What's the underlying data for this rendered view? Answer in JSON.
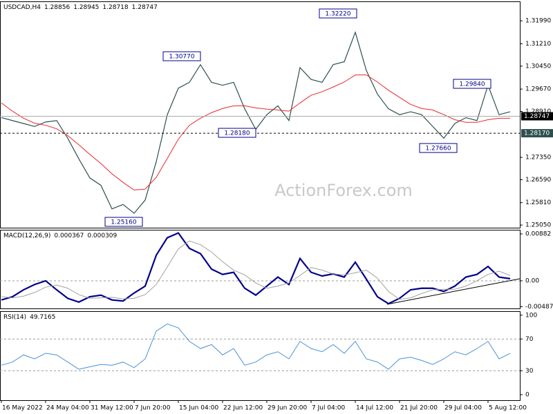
{
  "chart_data": [
    {
      "type": "line",
      "title": "USDCAD,H4",
      "ohlc": [
        1.28856,
        1.28945,
        1.28718,
        1.28747
      ],
      "watermark": "ActionForex.com",
      "categories": [
        "16 May 2022",
        null,
        null,
        null,
        "24 May 04:00",
        null,
        null,
        null,
        "31 May 12:00",
        null,
        null,
        null,
        "7 Jun 20:00",
        null,
        null,
        null,
        "15 Jun 04:00",
        null,
        null,
        null,
        "22 Jun 12:00",
        null,
        null,
        null,
        "29 Jun 20:00",
        null,
        null,
        null,
        "7 Jul 04:00",
        null,
        null,
        null,
        "14 Jul 12:00",
        null,
        null,
        null,
        "21 Jul 20:00",
        null,
        null,
        null,
        "29 Jul 04:00",
        null,
        null,
        null,
        "5 Aug 12:00",
        null,
        null
      ],
      "series": [
        {
          "color": "#2f4f4f",
          "width": 1.2,
          "values": [
            1.287,
            1.286,
            1.285,
            1.284,
            1.2855,
            1.286,
            1.28,
            1.273,
            1.2665,
            1.264,
            1.256,
            1.2575,
            1.2545,
            1.259,
            1.272,
            1.288,
            1.297,
            1.299,
            1.305,
            1.299,
            1.298,
            1.299,
            1.29,
            1.283,
            1.288,
            1.291,
            1.286,
            1.304,
            1.3,
            1.299,
            1.305,
            1.306,
            1.316,
            1.303,
            1.295,
            1.29,
            1.288,
            1.289,
            1.288,
            1.284,
            1.28,
            1.285,
            1.287,
            1.286,
            1.298,
            1.288,
            1.289
          ]
        },
        {
          "color": "#e8262c",
          "width": 1,
          "values": [
            1.292,
            1.2892,
            1.2868,
            1.2851,
            1.2844,
            1.2832,
            1.2809,
            1.2778,
            1.2745,
            1.2714,
            1.2679,
            1.265,
            1.2624,
            1.2627,
            1.2667,
            1.2731,
            1.2797,
            1.2844,
            1.2868,
            1.2887,
            1.2901,
            1.291,
            1.291,
            1.2903,
            1.2899,
            1.2896,
            1.2892,
            1.292,
            1.2946,
            1.2958,
            1.2974,
            1.2991,
            1.3015,
            1.3015,
            1.2991,
            1.2963,
            1.2939,
            1.2915,
            1.2901,
            1.2896,
            1.288,
            1.2863,
            1.2854,
            1.2854,
            1.2863,
            1.2868,
            1.2868
          ]
        }
      ],
      "ylim": [
        1.2496,
        1.3265
      ],
      "yticks": [
        {
          "value": 1.3199,
          "label": "1.31990"
        },
        {
          "value": 1.3121,
          "label": "1.31210"
        },
        {
          "value": 1.3045,
          "label": "1.30450"
        },
        {
          "value": 1.2967,
          "label": "1.29670"
        },
        {
          "value": 1.2891,
          "label": "1.28910"
        },
        {
          "value": 1.2735,
          "label": "1.27350"
        },
        {
          "value": 1.2659,
          "label": "1.26590"
        },
        {
          "value": 1.2581,
          "label": "1.25810"
        },
        {
          "value": 1.2505,
          "label": "1.25050"
        }
      ],
      "current": 1.28747,
      "level": {
        "value": 1.2817,
        "label": "1.28170"
      },
      "annotations": [
        "1.32220",
        "1.30770",
        "1.28180",
        "1.25160",
        "1.27660",
        "1.29840"
      ]
    },
    {
      "type": "line",
      "title": "MACD(12,26,9)",
      "readings": [
        0.000367,
        0.000309
      ],
      "series": [
        {
          "color": "#00008b",
          "width": 2.2,
          "values": [
            -0.0036,
            -0.003,
            -0.0017,
            -0.0007,
            0.0,
            -0.0017,
            -0.0033,
            -0.004,
            -0.003,
            -0.0027,
            -0.0036,
            -0.0038,
            -0.0023,
            -0.001,
            0.0048,
            0.0081,
            0.009,
            0.0061,
            0.0051,
            0.0022,
            0.0012,
            0.0016,
            -0.0014,
            -0.0027,
            -0.001,
            0.0007,
            -0.0007,
            0.0042,
            0.0016,
            0.0009,
            0.0013,
            0.0007,
            0.0035,
            0.0003,
            -0.003,
            -0.0043,
            -0.0033,
            -0.0017,
            -0.0014,
            -0.0014,
            -0.002,
            -0.001,
            0.0007,
            0.0012,
            0.0027,
            0.0007,
            0.0004
          ]
        },
        {
          "color": "#a0a0a0",
          "width": 1,
          "values": [
            -0.003,
            -0.0032,
            -0.0029,
            -0.0022,
            -0.0012,
            -0.0008,
            -0.0014,
            -0.0026,
            -0.0033,
            -0.0032,
            -0.0031,
            -0.0034,
            -0.0033,
            -0.0026,
            -0.0007,
            0.0026,
            0.006,
            0.0075,
            0.0068,
            0.0054,
            0.0036,
            0.002,
            0.0011,
            -0.0004,
            -0.0014,
            -0.001,
            -0.0004,
            0.001,
            0.0025,
            0.002,
            0.0013,
            0.0011,
            0.0015,
            0.002,
            0.0005,
            -0.002,
            -0.0035,
            -0.0032,
            -0.0024,
            -0.0017,
            -0.0016,
            -0.0016,
            -0.001,
            0.0,
            0.0012,
            0.0018,
            0.001
          ]
        }
      ],
      "ylim": [
        -0.0052,
        0.0096
      ],
      "yticks": [
        0.00882,
        {
          "value": 0,
          "label": "0.00"
        },
        -0.004872
      ],
      "levels": [
        0
      ]
    },
    {
      "type": "line",
      "title": "RSI(14)",
      "readings": [
        49.7165
      ],
      "series": [
        {
          "color": "#4a90d9",
          "width": 1,
          "values": [
            37,
            41,
            50,
            45,
            52,
            50,
            41,
            32,
            35,
            38,
            37,
            41,
            34,
            45,
            80,
            89,
            84,
            67,
            58,
            63,
            50,
            58,
            37,
            41,
            50,
            54,
            45,
            67,
            58,
            54,
            63,
            52,
            67,
            45,
            41,
            32,
            45,
            47,
            43,
            38,
            45,
            54,
            50,
            58,
            67,
            45,
            52
          ]
        }
      ],
      "ylim": [
        -7,
        105
      ],
      "yticks": [
        100,
        70,
        30,
        0
      ],
      "levels": [
        30,
        70
      ]
    }
  ]
}
